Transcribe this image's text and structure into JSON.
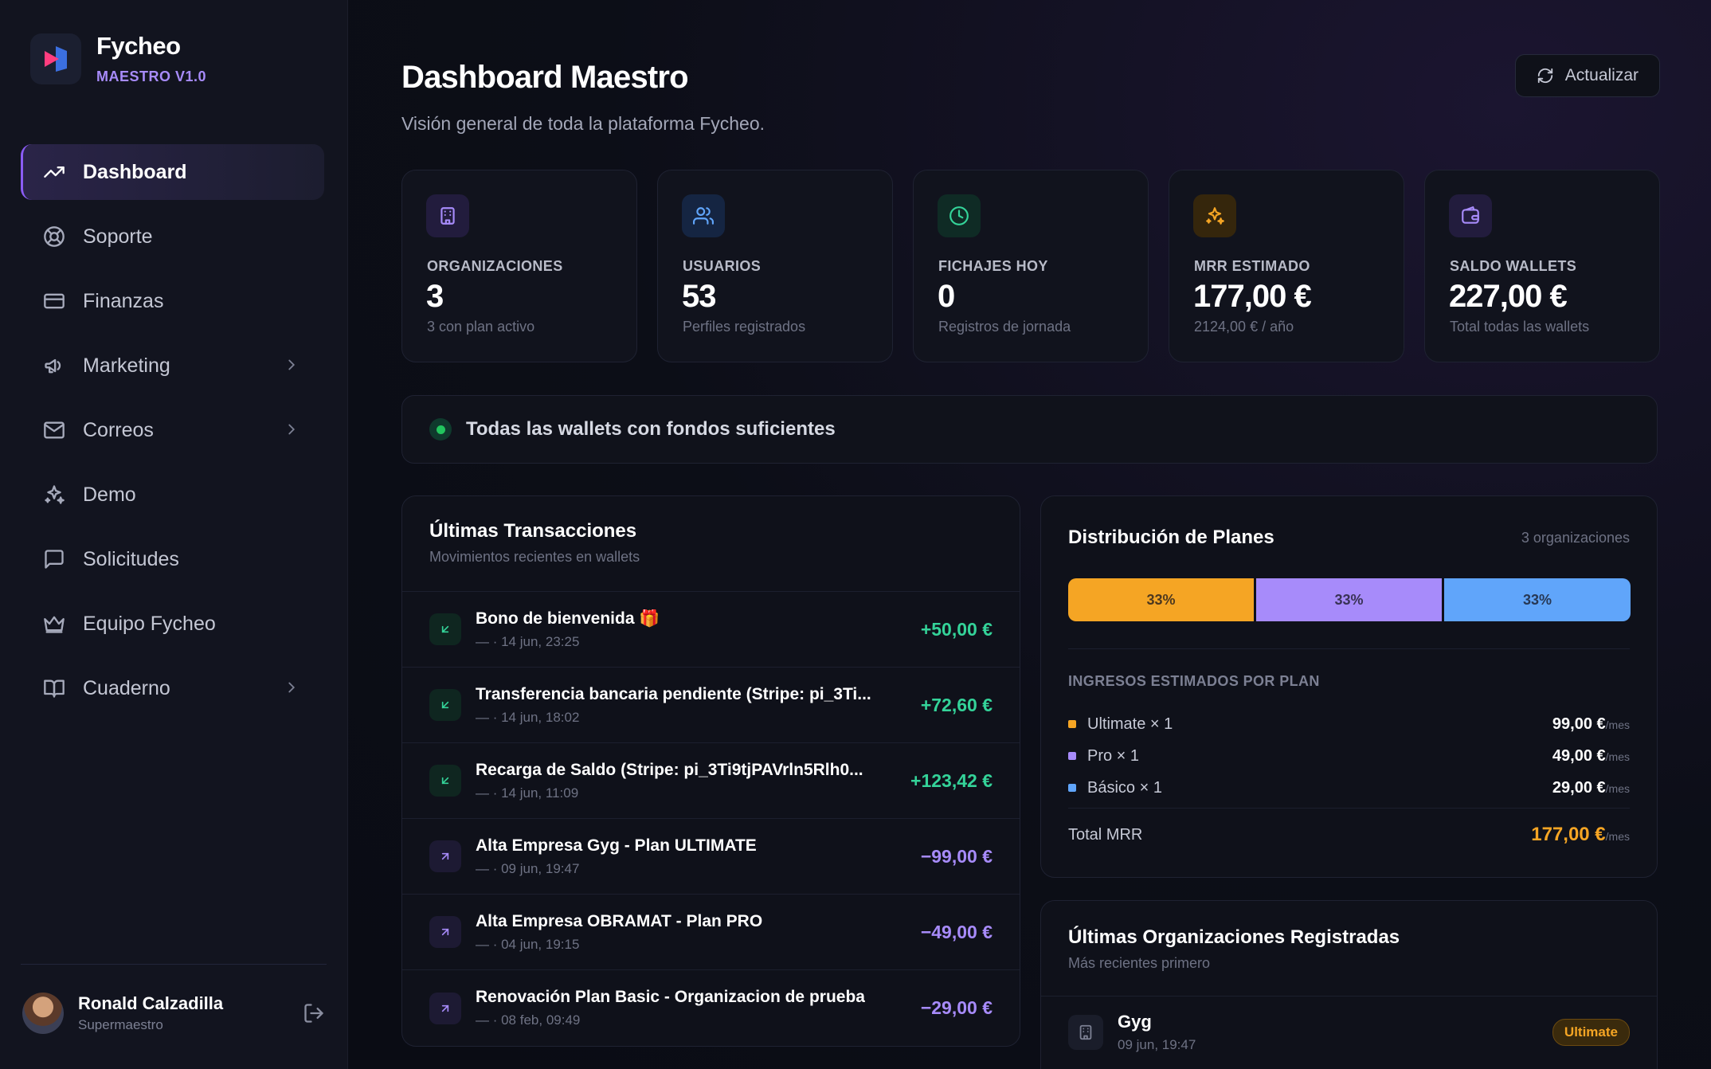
{
  "brand": {
    "name": "Fycheo",
    "version": "MAESTRO V1.0"
  },
  "nav": [
    {
      "label": "Dashboard",
      "icon": "trending-up-icon",
      "active": true
    },
    {
      "label": "Soporte",
      "icon": "lifebuoy-icon"
    },
    {
      "label": "Finanzas",
      "icon": "credit-card-icon"
    },
    {
      "label": "Marketing",
      "icon": "megaphone-icon",
      "chevron": true
    },
    {
      "label": "Correos",
      "icon": "mail-icon",
      "chevron": true
    },
    {
      "label": "Demo",
      "icon": "sparkles-icon"
    },
    {
      "label": "Solicitudes",
      "icon": "message-square-icon"
    },
    {
      "label": "Equipo Fycheo",
      "icon": "crown-icon"
    },
    {
      "label": "Cuaderno",
      "icon": "book-open-icon",
      "chevron": true
    }
  ],
  "user": {
    "name": "Ronald Calzadilla",
    "role": "Supermaestro"
  },
  "header": {
    "title": "Dashboard Maestro",
    "subtitle": "Visión general de toda la plataforma Fycheo.",
    "refresh_label": "Actualizar"
  },
  "stats": [
    {
      "label": "ORGANIZACIONES",
      "value": "3",
      "sub": "3 con plan activo",
      "color": "#a78bfa",
      "bg": "#221c3d",
      "icon": "building-icon"
    },
    {
      "label": "USUARIOS",
      "value": "53",
      "sub": "Perfiles registrados",
      "color": "#60a5fa",
      "bg": "#152542",
      "icon": "users-icon"
    },
    {
      "label": "FICHAJES HOY",
      "value": "0",
      "sub": "Registros de jornada",
      "color": "#34d399",
      "bg": "#0f2b25",
      "icon": "clock-icon"
    },
    {
      "label": "MRR ESTIMADO",
      "value": "177,00 €",
      "sub": "2124,00 € / año",
      "color": "#f5a524",
      "bg": "#35260c",
      "icon": "sparkles-icon"
    },
    {
      "label": "SALDO WALLETS",
      "value": "227,00 €",
      "sub": "Total todas las wallets",
      "color": "#a78bfa",
      "bg": "#221c3d",
      "icon": "wallet-icon"
    }
  ],
  "alert": {
    "text": "Todas las wallets con fondos suficientes"
  },
  "transactions": {
    "title": "Últimas Transacciones",
    "subtitle": "Movimientos recientes en wallets",
    "items": [
      {
        "title": "Bono de bienvenida 🎁",
        "date": "— · 14 jun, 23:25",
        "amount": "+50,00 €",
        "dir": "in"
      },
      {
        "title": "Transferencia bancaria pendiente (Stripe: pi_3Ti...",
        "date": "— · 14 jun, 18:02",
        "amount": "+72,60 €",
        "dir": "in"
      },
      {
        "title": "Recarga de Saldo (Stripe: pi_3Ti9tjPAVrln5Rlh0...",
        "date": "— · 14 jun, 11:09",
        "amount": "+123,42 €",
        "dir": "in"
      },
      {
        "title": "Alta Empresa Gyg - Plan ULTIMATE",
        "date": "— · 09 jun, 19:47",
        "amount": "−99,00 €",
        "dir": "out"
      },
      {
        "title": "Alta Empresa OBRAMAT - Plan PRO",
        "date": "— · 04 jun, 19:15",
        "amount": "−49,00 €",
        "dir": "out"
      },
      {
        "title": "Renovación Plan Basic - Organizacion de prueba",
        "date": "— · 08 feb, 09:49",
        "amount": "−29,00 €",
        "dir": "out"
      }
    ]
  },
  "plans": {
    "title": "Distribución de Planes",
    "count": "3 organizaciones",
    "segments": [
      {
        "label": "33%",
        "share": 0.333,
        "color": "#f5a524"
      },
      {
        "label": "33%",
        "share": 0.333,
        "color": "#a78bfa"
      },
      {
        "label": "33%",
        "share": 0.334,
        "color": "#60a5fa"
      }
    ],
    "income_label": "INGRESOS ESTIMADOS POR PLAN",
    "rows": [
      {
        "name": "Ultimate × 1",
        "value": "99,00 €",
        "color": "#f5a524"
      },
      {
        "name": "Pro × 1",
        "value": "49,00 €",
        "color": "#a78bfa"
      },
      {
        "name": "Básico × 1",
        "value": "29,00 €",
        "color": "#60a5fa"
      }
    ],
    "per": "/mes",
    "total_label": "Total MRR",
    "total_value": "177,00 €"
  },
  "orgs": {
    "title": "Últimas Organizaciones Registradas",
    "subtitle": "Más recientes primero",
    "items": [
      {
        "name": "Gyg",
        "date": "09 jun, 19:47",
        "badge": "Ultimate"
      }
    ]
  }
}
